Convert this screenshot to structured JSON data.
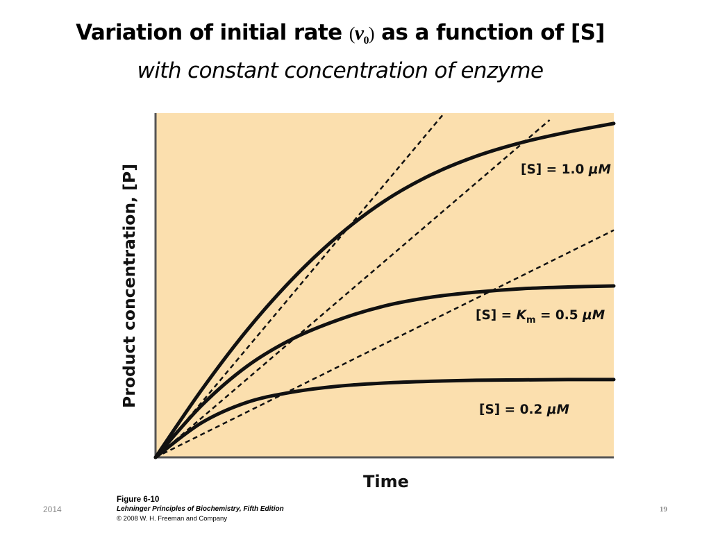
{
  "slide": {
    "title_part1": "Variation of initial rate ",
    "title_open_paren": "(",
    "title_v": "v",
    "title_sub": "0",
    "title_close_paren": ")",
    "title_part2": " as a function of [S]",
    "subtitle": "with constant concentration of enzyme",
    "footer_year": "2014",
    "page_number": "19"
  },
  "credit": {
    "figure": "Figure 6-10",
    "book": "Lehninger Principles of Biochemistry, Fifth Edition",
    "copyright": "© 2008 W. H. Freeman and Company"
  },
  "colors": {
    "plot_background": "#fbdfae",
    "curve": "#111111",
    "axis": "#555555"
  },
  "chart_data": {
    "type": "line",
    "title": "",
    "xlabel": "Time",
    "ylabel": "Product concentration, [P]",
    "xlim": [
      0,
      1
    ],
    "ylim": [
      0,
      1
    ],
    "grid": false,
    "series": [
      {
        "name": "[S] = 1.0 μM",
        "label_prefix": "[S] = 1.0 ",
        "label_unit": "μM",
        "style": "solid",
        "x": [
          0,
          0.1,
          0.2,
          0.3,
          0.4,
          0.5,
          0.6,
          0.7,
          0.8,
          0.9,
          1.0
        ],
        "y": [
          0,
          0.195,
          0.37,
          0.52,
          0.645,
          0.745,
          0.82,
          0.875,
          0.915,
          0.945,
          0.97
        ]
      },
      {
        "name": "[S] = Km = 0.5 μM",
        "label_prefix": "[S] = ",
        "label_km": "K",
        "label_km_sub": "m",
        "label_rest": " = 0.5 ",
        "label_unit": "μM",
        "style": "solid",
        "x": [
          0,
          0.1,
          0.2,
          0.3,
          0.4,
          0.5,
          0.6,
          0.7,
          0.8,
          0.9,
          1.0
        ],
        "y": [
          0,
          0.15,
          0.265,
          0.345,
          0.4,
          0.44,
          0.465,
          0.48,
          0.49,
          0.495,
          0.498
        ]
      },
      {
        "name": "[S] = 0.2 μM",
        "label_prefix": "[S] = 0.2 ",
        "label_unit": "μM",
        "style": "solid",
        "x": [
          0,
          0.1,
          0.2,
          0.3,
          0.4,
          0.5,
          0.6,
          0.7,
          0.8,
          0.9,
          1.0
        ],
        "y": [
          0,
          0.1,
          0.16,
          0.19,
          0.207,
          0.216,
          0.221,
          0.224,
          0.225,
          0.226,
          0.226
        ]
      }
    ],
    "tangents": [
      {
        "name": "initial-rate tangent [S] = 1.0 μM",
        "style": "dashed",
        "x": [
          0,
          0.63
        ],
        "y": [
          0,
          1.0
        ]
      },
      {
        "name": "initial-rate tangent [S] = 0.5 μM",
        "style": "dashed",
        "x": [
          0,
          0.86
        ],
        "y": [
          0,
          0.98
        ]
      },
      {
        "name": "initial-rate tangent [S] = 0.2 μM",
        "style": "dashed",
        "x": [
          0,
          1.0
        ],
        "y": [
          0,
          0.66
        ]
      }
    ]
  }
}
